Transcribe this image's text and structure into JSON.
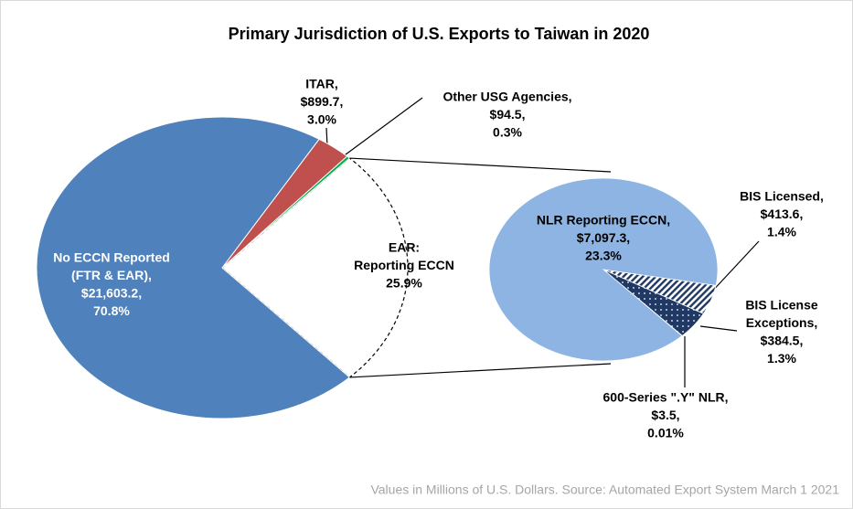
{
  "chart_data": {
    "type": "pie_of_pie",
    "title": "Primary Jurisdiction of U.S. Exports to Taiwan in 2020",
    "footnote": "Values in Millions of U.S. Dollars.  Source: Automated Export System March 1 2021",
    "slices": [
      {
        "name": [
          "No ECCN Reported",
          "(FTR & EAR),"
        ],
        "value": 21603.2,
        "value_label": "$21,603.2,",
        "percent": 70.8,
        "percent_label": "70.8%",
        "color": "#4f81bd"
      },
      {
        "name": [
          "ITAR,"
        ],
        "value": 899.7,
        "value_label": "$899.7,",
        "percent": 3.0,
        "percent_label": "3.0%",
        "color": "#c0504d"
      },
      {
        "name": [
          "Other USG Agencies,"
        ],
        "value": 94.5,
        "value_label": "$94.5,",
        "percent": 0.3,
        "percent_label": "0.3%",
        "color": "#00b050"
      },
      {
        "name": [
          "EAR:",
          "Reporting ECCN"
        ],
        "percent": 25.9,
        "percent_label": "25.9%",
        "color": "none"
      }
    ],
    "secondary": [
      {
        "name": [
          "NLR Reporting ECCN,"
        ],
        "value": 7097.3,
        "value_label": "$7,097.3,",
        "percent": 23.3,
        "percent_label": "23.3%",
        "color": "#8db4e2"
      },
      {
        "name": [
          "BIS Licensed,"
        ],
        "value": 413.6,
        "value_label": "$413.6,",
        "percent": 1.4,
        "percent_label": "1.4%",
        "color": "#1f3864",
        "pattern": "hatch"
      },
      {
        "name": [
          "BIS License",
          "Exceptions,"
        ],
        "value": 384.5,
        "value_label": "$384.5,",
        "percent": 1.3,
        "percent_label": "1.3%",
        "color": "#1f3864",
        "pattern": "dots"
      },
      {
        "name": [
          "600-Series \".Y\" NLR,"
        ],
        "value": 3.5,
        "value_label": "$3.5,",
        "percent": 0.01,
        "percent_label": "0.01%",
        "color": "#1f3864"
      }
    ]
  }
}
